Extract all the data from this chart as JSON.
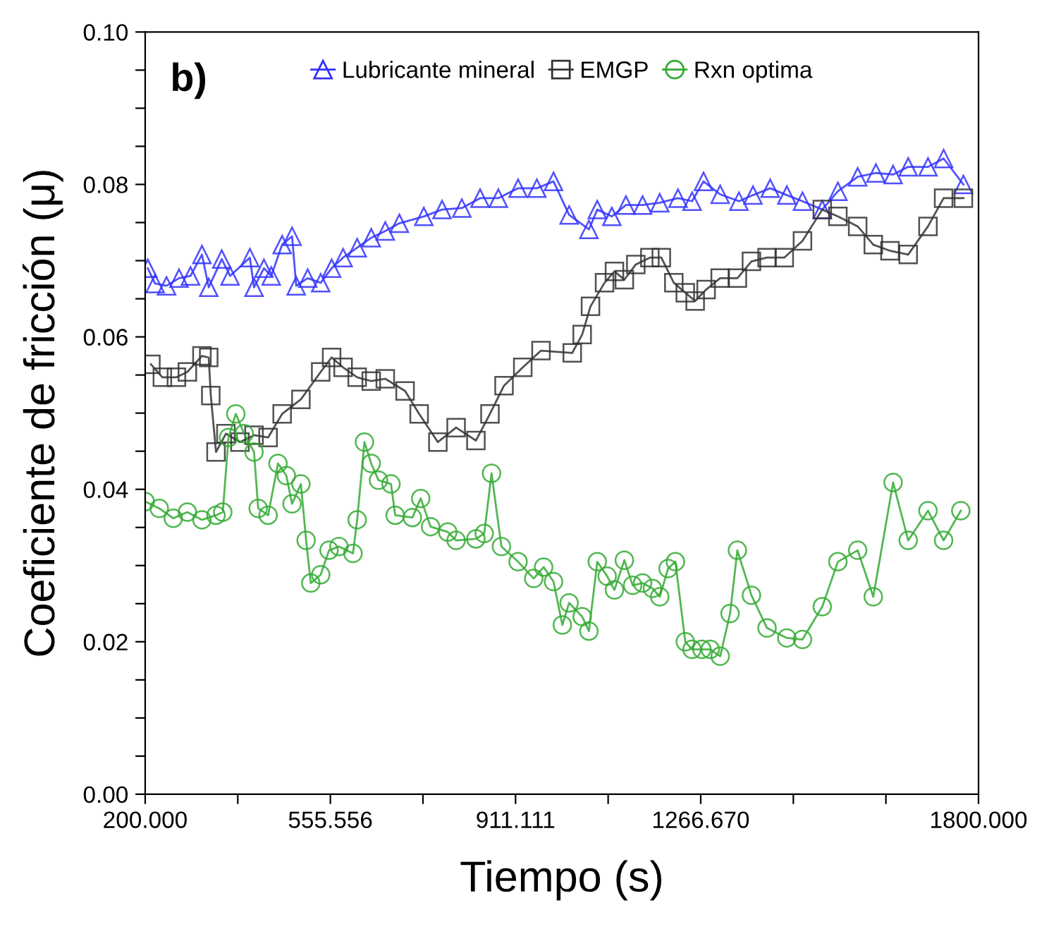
{
  "chart_data": {
    "type": "line",
    "xlabel": "Tiempo (s)",
    "ylabel": "Coeficiente de fricción (μ)",
    "annotations": [
      "b)"
    ],
    "xlim": [
      200,
      1800
    ],
    "ylim": [
      0,
      0.1
    ],
    "xticks": [
      {
        "value": 200,
        "label": "200.000"
      },
      {
        "value": 377.778,
        "label": null
      },
      {
        "value": 555.556,
        "label": "555.556"
      },
      {
        "value": 733.333,
        "label": null
      },
      {
        "value": 911.111,
        "label": "911.111"
      },
      {
        "value": 1088.889,
        "label": null
      },
      {
        "value": 1266.67,
        "label": "1266.670"
      },
      {
        "value": 1444.444,
        "label": null
      },
      {
        "value": 1622.222,
        "label": null
      },
      {
        "value": 1800,
        "label": "1800.000"
      }
    ],
    "yticks": [
      {
        "value": 0,
        "label": "0.00"
      },
      {
        "value": 0.005,
        "label": null
      },
      {
        "value": 0.01,
        "label": null
      },
      {
        "value": 0.015,
        "label": null
      },
      {
        "value": 0.02,
        "label": "0.02"
      },
      {
        "value": 0.025,
        "label": null
      },
      {
        "value": 0.03,
        "label": null
      },
      {
        "value": 0.035,
        "label": null
      },
      {
        "value": 0.04,
        "label": "0.04"
      },
      {
        "value": 0.045,
        "label": null
      },
      {
        "value": 0.05,
        "label": null
      },
      {
        "value": 0.055,
        "label": null
      },
      {
        "value": 0.06,
        "label": "0.06"
      },
      {
        "value": 0.065,
        "label": null
      },
      {
        "value": 0.07,
        "label": null
      },
      {
        "value": 0.075,
        "label": null
      },
      {
        "value": 0.08,
        "label": "0.08"
      },
      {
        "value": 0.085,
        "label": null
      },
      {
        "value": 0.09,
        "label": null
      },
      {
        "value": 0.095,
        "label": null
      },
      {
        "value": 0.1,
        "label": "0.10"
      }
    ],
    "grid": false,
    "legend": "top",
    "line_style": "solid",
    "series": [
      {
        "name": "Lubricante mineral",
        "color": "#3333ff",
        "marker": "triangle",
        "x": [
          205,
          219,
          241,
          265,
          287,
          309,
          322,
          347,
          363,
          401,
          409,
          428,
          442,
          463,
          482,
          490,
          512,
          537,
          558,
          580,
          607,
          634,
          661,
          688,
          735,
          770,
          808,
          843,
          878,
          916,
          952,
          984,
          1014,
          1052,
          1068,
          1096,
          1123,
          1155,
          1188,
          1223,
          1250,
          1272,
          1304,
          1340,
          1367,
          1400,
          1432,
          1462,
          1500,
          1530,
          1568,
          1603,
          1636,
          1665,
          1703,
          1733,
          1771
        ],
        "values": [
          0.069,
          0.067,
          0.0667,
          0.0677,
          0.068,
          0.0708,
          0.0665,
          0.0702,
          0.068,
          0.0704,
          0.0665,
          0.069,
          0.068,
          0.0721,
          0.0732,
          0.0667,
          0.0677,
          0.0671,
          0.069,
          0.0704,
          0.0717,
          0.073,
          0.0739,
          0.0749,
          0.0758,
          0.0767,
          0.0769,
          0.0782,
          0.0782,
          0.0795,
          0.0795,
          0.0804,
          0.076,
          0.0741,
          0.0767,
          0.0758,
          0.0773,
          0.0773,
          0.0776,
          0.0782,
          0.0778,
          0.0804,
          0.0787,
          0.0778,
          0.0786,
          0.0795,
          0.0786,
          0.0778,
          0.0767,
          0.0791,
          0.081,
          0.0815,
          0.0813,
          0.0823,
          0.0823,
          0.0834,
          0.08
        ]
      },
      {
        "name": "EMGP",
        "color": "#333333",
        "marker": "square",
        "x": [
          211,
          233,
          260,
          281,
          309,
          322,
          326,
          336,
          355,
          382,
          409,
          436,
          463,
          499,
          537,
          558,
          580,
          607,
          634,
          661,
          699,
          726,
          762,
          797,
          835,
          862,
          889,
          925,
          960,
          1020,
          1039,
          1055,
          1082,
          1101,
          1120,
          1142,
          1169,
          1191,
          1215,
          1237,
          1256,
          1277,
          1304,
          1337,
          1364,
          1394,
          1427,
          1462,
          1500,
          1530,
          1568,
          1598,
          1630,
          1665,
          1703,
          1733,
          1771
        ],
        "values": [
          0.0564,
          0.0547,
          0.0547,
          0.0554,
          0.0575,
          0.0573,
          0.0523,
          0.0449,
          0.0473,
          0.0462,
          0.0471,
          0.0468,
          0.0499,
          0.0518,
          0.0554,
          0.0573,
          0.056,
          0.0547,
          0.0542,
          0.0545,
          0.0529,
          0.0499,
          0.0462,
          0.0481,
          0.0464,
          0.0499,
          0.0536,
          0.056,
          0.0582,
          0.0579,
          0.0603,
          0.064,
          0.0671,
          0.0686,
          0.0675,
          0.0695,
          0.0704,
          0.0704,
          0.0671,
          0.0658,
          0.0647,
          0.0662,
          0.0677,
          0.0677,
          0.0699,
          0.0704,
          0.0704,
          0.0726,
          0.0767,
          0.0758,
          0.0745,
          0.0721,
          0.0713,
          0.0708,
          0.0745,
          0.0782,
          0.0782
        ]
      },
      {
        "name": "Rxn optima",
        "color": "#33aa33",
        "marker": "circle",
        "x": [
          200,
          227,
          254,
          281,
          309,
          336,
          349,
          360,
          374,
          390,
          409,
          417,
          436,
          455,
          471,
          482,
          499,
          509,
          518,
          537,
          553,
          572,
          599,
          607,
          621,
          634,
          648,
          672,
          680,
          713,
          729,
          748,
          781,
          797,
          835,
          851,
          865,
          884,
          916,
          946,
          965,
          984,
          1001,
          1014,
          1039,
          1052,
          1068,
          1087,
          1101,
          1120,
          1136,
          1155,
          1174,
          1188,
          1204,
          1218,
          1237,
          1250,
          1269,
          1285,
          1304,
          1323,
          1337,
          1364,
          1394,
          1432,
          1462,
          1500,
          1530,
          1568,
          1598,
          1636,
          1665,
          1703,
          1733,
          1766
        ],
        "values": [
          0.0384,
          0.0375,
          0.0362,
          0.037,
          0.036,
          0.0366,
          0.037,
          0.0468,
          0.0499,
          0.0473,
          0.0449,
          0.0375,
          0.0366,
          0.0434,
          0.0418,
          0.0381,
          0.0407,
          0.0333,
          0.0277,
          0.0288,
          0.032,
          0.0325,
          0.0316,
          0.036,
          0.0462,
          0.0434,
          0.0412,
          0.0407,
          0.0366,
          0.0363,
          0.0388,
          0.0351,
          0.0344,
          0.0333,
          0.0335,
          0.0342,
          0.0421,
          0.0325,
          0.0305,
          0.0283,
          0.0298,
          0.0279,
          0.0222,
          0.0251,
          0.0233,
          0.0214,
          0.0305,
          0.0286,
          0.0268,
          0.0307,
          0.0274,
          0.0277,
          0.027,
          0.0259,
          0.0296,
          0.0305,
          0.02,
          0.019,
          0.019,
          0.019,
          0.0181,
          0.0237,
          0.032,
          0.0261,
          0.0218,
          0.0205,
          0.0203,
          0.0246,
          0.0305,
          0.032,
          0.0259,
          0.0409,
          0.0333,
          0.0372,
          0.0333,
          0.0372
        ]
      }
    ]
  }
}
